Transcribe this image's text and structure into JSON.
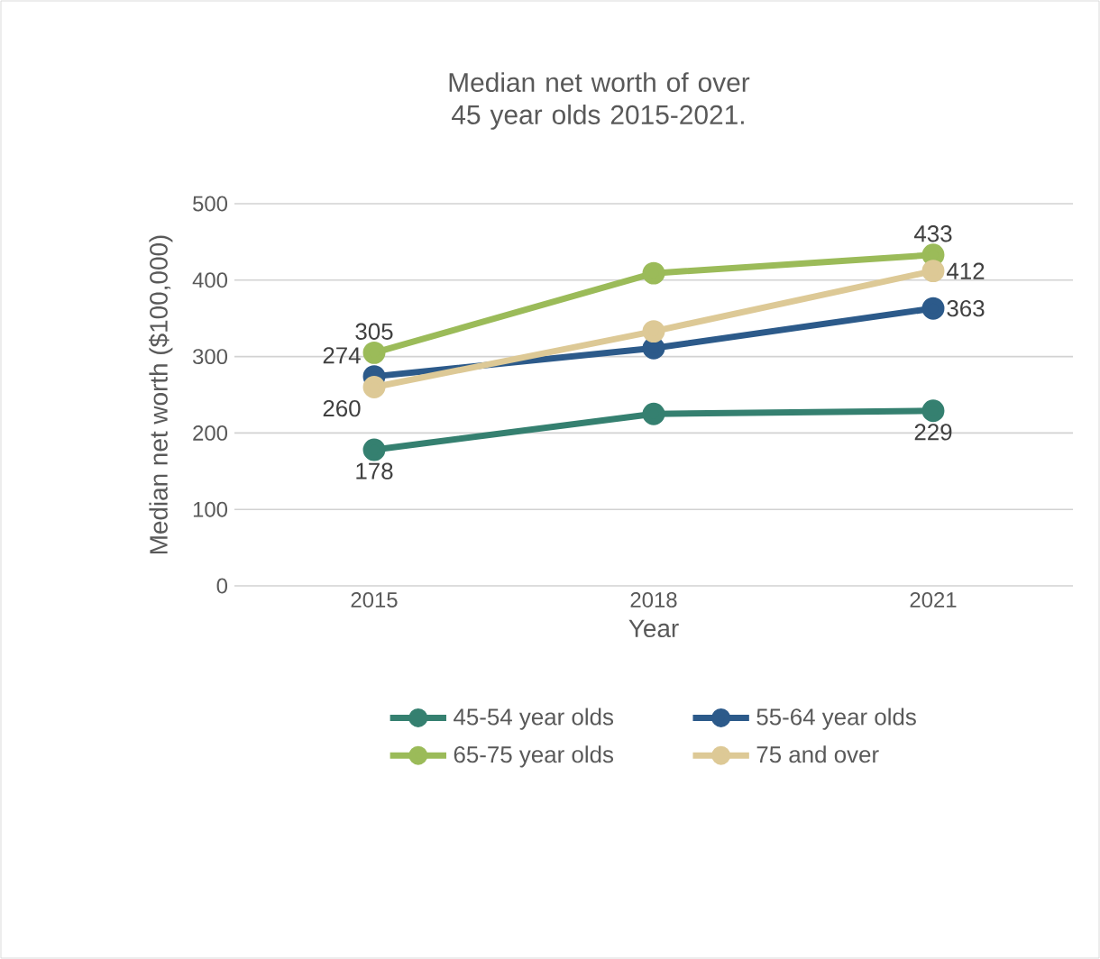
{
  "chart_data": {
    "type": "line",
    "title": "Median net worth of over 45 year olds 2015-2021.",
    "xlabel": "Year",
    "ylabel": "Median net worth ($100,000)",
    "categories": [
      "2015",
      "2018",
      "2021"
    ],
    "series": [
      {
        "name": "45-54 year olds",
        "color": "#358070",
        "values": [
          178,
          225,
          229
        ],
        "value_labels": [
          "178",
          null,
          "229"
        ]
      },
      {
        "name": "55-64 year olds",
        "color": "#2c5a8a",
        "values": [
          274,
          311,
          363
        ],
        "value_labels": [
          "274",
          null,
          "363"
        ]
      },
      {
        "name": "65-75 year olds",
        "color": "#9bbb59",
        "values": [
          305,
          409,
          433
        ],
        "value_labels": [
          "305",
          null,
          "433"
        ]
      },
      {
        "name": "75 and over",
        "color": "#ddc996",
        "values": [
          260,
          333,
          412
        ],
        "value_labels": [
          "260",
          null,
          "412"
        ]
      }
    ],
    "ylim": [
      0,
      500
    ],
    "yticks": [
      0,
      100,
      200,
      300,
      400,
      500
    ],
    "grid": "y",
    "legend": "bottom",
    "marker": "circle",
    "line_style": "solid"
  }
}
